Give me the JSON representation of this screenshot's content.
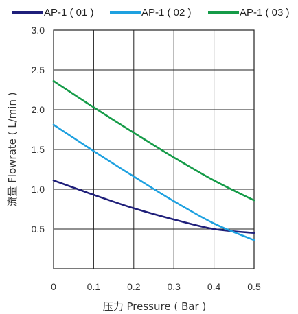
{
  "chart_data": {
    "type": "line",
    "title": "",
    "xlabel": "压力 Pressure ( Bar )",
    "ylabel": "流量 Flowrate ( L/min )",
    "xlim": [
      0,
      0.5
    ],
    "ylim": [
      0,
      3.0
    ],
    "x_ticks": [
      "0",
      "0.1",
      "0.2",
      "0.3",
      "0.4",
      "0.5"
    ],
    "y_ticks": [
      "0.5",
      "1.0",
      "1.5",
      "2.0",
      "2.5",
      "3.0"
    ],
    "grid": true,
    "legend_position": "top",
    "series": [
      {
        "name": "AP-1 ( 01 )",
        "color": "#1f1f7a",
        "x": [
          0,
          0.1,
          0.2,
          0.3,
          0.4,
          0.5
        ],
        "y": [
          1.11,
          0.93,
          0.76,
          0.62,
          0.5,
          0.45
        ]
      },
      {
        "name": "AP-1 ( 02 )",
        "color": "#1ea1e0",
        "x": [
          0,
          0.1,
          0.2,
          0.3,
          0.4,
          0.5
        ],
        "y": [
          1.81,
          1.48,
          1.16,
          0.85,
          0.57,
          0.36
        ]
      },
      {
        "name": "AP-1 ( 03 )",
        "color": "#159b48",
        "x": [
          0,
          0.1,
          0.2,
          0.3,
          0.4,
          0.5
        ],
        "y": [
          2.36,
          2.03,
          1.71,
          1.4,
          1.11,
          0.86
        ]
      }
    ]
  }
}
